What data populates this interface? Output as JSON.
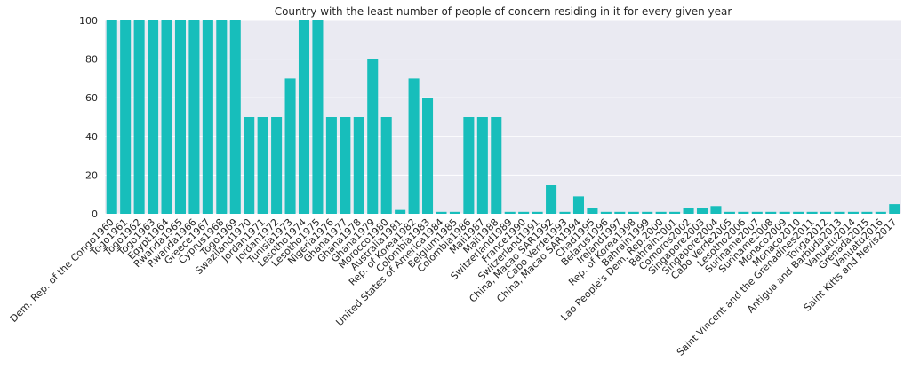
{
  "chart_data": {
    "type": "bar",
    "title": "Country with the least number of people of concern residing in it for every given year",
    "xlabel": "",
    "ylabel": "",
    "ylim": [
      0,
      100
    ],
    "yticks": [
      0,
      20,
      40,
      60,
      80,
      100
    ],
    "grid": true,
    "bar_color": "#17bebb",
    "background_color": "#eaeaf2",
    "categories": [
      "Dem. Rep. of the Congo1960",
      "Togo1961",
      "Togo1962",
      "Togo1963",
      "Egypt1964",
      "Rwanda1965",
      "Rwanda1966",
      "Greece1967",
      "Cyprus1968",
      "Togo1969",
      "Swaziland1970",
      "Jordan1971",
      "Jordan1972",
      "Tunisia1973",
      "Lesotho1974",
      "Lesotho1975",
      "Nigeria1976",
      "Ghana1977",
      "Ghana1978",
      "Ghana1979",
      "Morocco1980",
      "Australia1981",
      "Rep. of Korea1982",
      "Colombia1983",
      "United States of America1984",
      "Belgium1985",
      "Colombia1986",
      "Mali1987",
      "Mali1988",
      "Switzerland1989",
      "France1990",
      "Switzerland1991",
      "China, Macao SAR1992",
      "Cabo Verde1993",
      "China, Macao SAR1994",
      "Chad1995",
      "Belarus1996",
      "Ireland1997",
      "Rep. of Korea1998",
      "Bahrain1999",
      "Lao People's Dem. Rep.2000",
      "Bahrain2001",
      "Comoros2002",
      "Singapore2003",
      "Singapore2004",
      "Cabo Verde2005",
      "Lesotho2006",
      "Suriname2007",
      "Suriname2008",
      "Monaco2009",
      "Monaco2010",
      "Saint Vincent and the Grenadines2011",
      "Tonga2012",
      "Antigua and Barbuda2013",
      "Vanuatu2014",
      "Grenada2015",
      "Vanuatu2016",
      "Saint Kitts and Nevis2017"
    ],
    "values": [
      100,
      100,
      100,
      100,
      100,
      100,
      100,
      100,
      100,
      100,
      50,
      50,
      50,
      70,
      100,
      100,
      50,
      50,
      50,
      80,
      50,
      2,
      70,
      60,
      1,
      1,
      50,
      50,
      50,
      1,
      1,
      1,
      15,
      1,
      9,
      3,
      1,
      1,
      1,
      1,
      1,
      1,
      3,
      3,
      4,
      1,
      1,
      1,
      1,
      1,
      1,
      1,
      1,
      1,
      1,
      1,
      1,
      5
    ]
  }
}
